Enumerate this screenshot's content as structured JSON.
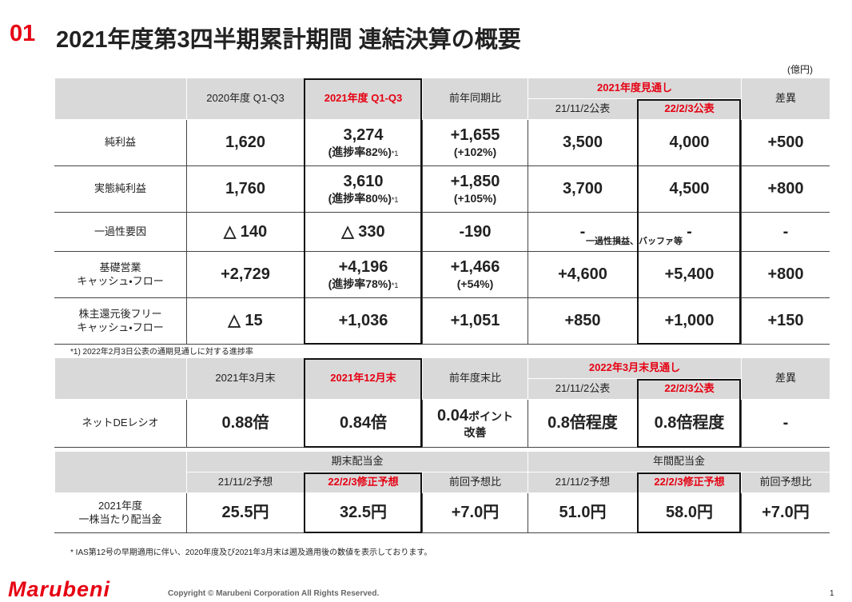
{
  "header": {
    "section_number": "01",
    "title": "2021年度第3四半期累計期間 連結決算の概要",
    "unit": "(億円)"
  },
  "table1": {
    "columns": [
      "2020年度 Q1-Q3",
      "2021年度 Q1-Q3",
      "前年同期比"
    ],
    "forecast_group": "2021年度見通し",
    "forecast_columns": [
      "21/11/2公表",
      "22/2/3公表"
    ],
    "diff_column": "差異",
    "rows": [
      {
        "label": "純利益",
        "cells": [
          "1,620",
          {
            "text": "3,274",
            "sub": "(進捗率82%)",
            "mark": "*1"
          },
          {
            "text": "+1,655",
            "sub": "(+102%)"
          },
          "3,500",
          "4,000",
          "+500"
        ]
      },
      {
        "label": "実態純利益",
        "cells": [
          "1,760",
          {
            "text": "3,610",
            "sub": "(進捗率80%)",
            "mark": "*1"
          },
          {
            "text": "+1,850",
            "sub": "(+105%)"
          },
          "3,700",
          "4,500",
          "+800"
        ]
      },
      {
        "label": "一過性要因",
        "cells": [
          "△ 140",
          "△ 330",
          "-190",
          "-",
          "-",
          "-"
        ],
        "note": "一過性損益、バッファ等"
      },
      {
        "label": [
          "基礎営業",
          "キャッシュ・フロー"
        ],
        "cells": [
          "+2,729",
          {
            "text": "+4,196",
            "sub": "(進捗率78%)",
            "mark": "*1"
          },
          {
            "text": "+1,466",
            "sub": "(+54%)"
          },
          "+4,600",
          "+5,400",
          "+800"
        ]
      },
      {
        "label": [
          "株主還元後フリー",
          "キャッシュ・フロー"
        ],
        "cells": [
          "△ 15",
          "+1,036",
          "+1,051",
          "+850",
          "+1,000",
          "+150"
        ]
      }
    ],
    "footnote": "*1) 2022年2月3日公表の通期見通しに対する進捗率"
  },
  "table2": {
    "columns": [
      "2021年3月末",
      "2021年12月末",
      "前年度末比"
    ],
    "forecast_group": "2022年3月末見通し",
    "forecast_columns": [
      "21/11/2公表",
      "22/2/3公表"
    ],
    "diff_column": "差異",
    "rows": [
      {
        "label": "ネットDEレシオ",
        "cells": [
          "0.88倍",
          "0.84倍",
          {
            "text": "0.04",
            "unit": "ポイント",
            "sub": "改善"
          },
          "0.8倍程度",
          "0.8倍程度",
          "-"
        ]
      }
    ]
  },
  "table3": {
    "groups": [
      "期末配当金",
      "年間配当金"
    ],
    "columns": [
      "21/11/2予想",
      "22/2/3修正予想",
      "前回予想比",
      "21/11/2予想",
      "22/2/3修正予想",
      "前回予想比"
    ],
    "rows": [
      {
        "label": [
          "2021年度",
          "一株当たり配当金"
        ],
        "cells": [
          "25.5円",
          "32.5円",
          "+7.0円",
          "51.0円",
          "58.0円",
          "+7.0円"
        ]
      }
    ]
  },
  "footnote": "* IAS第12号の早期適用に伴い、2020年度及び2021年3月末は遡及適用後の数値を表示しております。",
  "footer": {
    "logo": "Marubeni",
    "copyright": "Copyright © Marubeni Corporation All Rights Reserved.",
    "page": "1"
  }
}
